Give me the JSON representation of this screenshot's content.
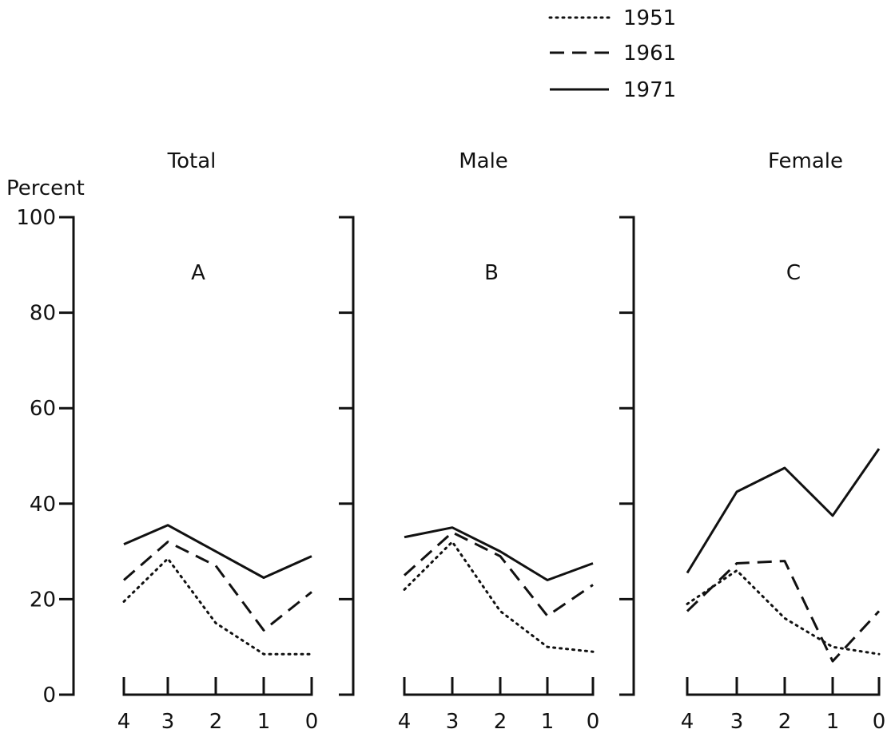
{
  "chart_data": [
    {
      "type": "line",
      "title": "Total",
      "panel_label": "A",
      "ylabel": "Percent",
      "xlabel": "",
      "x": [
        4,
        3,
        2,
        1,
        0
      ],
      "x_ticks": [
        "4",
        "3",
        "2",
        "1",
        "0"
      ],
      "ylim": [
        0,
        100
      ],
      "y_ticks": [
        "0",
        "20",
        "40",
        "60",
        "80",
        "100"
      ],
      "grid": false,
      "legend_position": "top-right",
      "series": [
        {
          "name": "1951",
          "style": "dotted",
          "values": [
            19.5,
            28.5,
            15,
            8.5,
            8.5
          ]
        },
        {
          "name": "1961",
          "style": "dashed",
          "values": [
            24,
            32,
            27,
            13.5,
            21.5
          ]
        },
        {
          "name": "1971",
          "style": "solid",
          "values": [
            31.5,
            35.5,
            30,
            24.5,
            29
          ]
        }
      ]
    },
    {
      "type": "line",
      "title": "Male",
      "panel_label": "B",
      "x": [
        4,
        3,
        2,
        1,
        0
      ],
      "x_ticks": [
        "4",
        "3",
        "2",
        "1",
        "0"
      ],
      "ylim": [
        0,
        100
      ],
      "grid": false,
      "series": [
        {
          "name": "1951",
          "style": "dotted",
          "values": [
            22,
            32,
            17.5,
            10,
            9
          ]
        },
        {
          "name": "1961",
          "style": "dashed",
          "values": [
            25,
            34,
            29,
            16.5,
            23
          ]
        },
        {
          "name": "1971",
          "style": "solid",
          "values": [
            33,
            35,
            30,
            24,
            27.5
          ]
        }
      ]
    },
    {
      "type": "line",
      "title": "Female",
      "panel_label": "C",
      "x": [
        4,
        3,
        2,
        1,
        0
      ],
      "x_ticks": [
        "4",
        "3",
        "2",
        "1",
        "0"
      ],
      "ylim": [
        0,
        100
      ],
      "grid": false,
      "series": [
        {
          "name": "1951",
          "style": "dotted",
          "values": [
            19,
            26,
            16,
            10,
            8.5
          ]
        },
        {
          "name": "1961",
          "style": "dashed",
          "values": [
            17.5,
            27.5,
            28,
            7,
            17.5
          ]
        },
        {
          "name": "1971",
          "style": "solid",
          "values": [
            25.5,
            42.5,
            47.5,
            37.5,
            51.5
          ]
        }
      ]
    }
  ]
}
